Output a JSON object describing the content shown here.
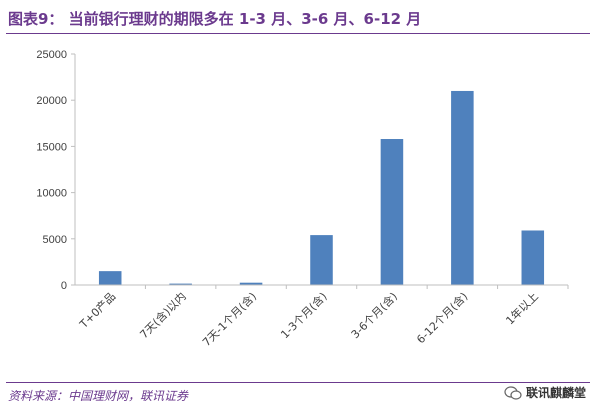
{
  "header": {
    "title": "图表9：  当前银行理财的期限多在 1-3 月、3-6 月、6-12 月"
  },
  "footer": {
    "source": "资料来源：中国理财网，联讯证券",
    "watermark": "联讯麒麟堂"
  },
  "colors": {
    "bar": "#4f81bd",
    "title": "#6b3a8e",
    "axis": "#bfbfbf"
  },
  "chart_data": {
    "type": "bar",
    "title": "",
    "xlabel": "",
    "ylabel": "",
    "categories": [
      "T+0产品",
      "7天(含)以内",
      "7天-1个月(含)",
      "1-3个月(含)",
      "3-6个月(含)",
      "6-12个月(含)",
      "1年以上"
    ],
    "values": [
      1500,
      150,
      250,
      5400,
      15800,
      21000,
      5900
    ],
    "ylim": [
      0,
      25000
    ],
    "yticks": [
      "0",
      "5000",
      "10000",
      "15000",
      "20000",
      "25000"
    ],
    "grid": false,
    "legend": "none"
  }
}
